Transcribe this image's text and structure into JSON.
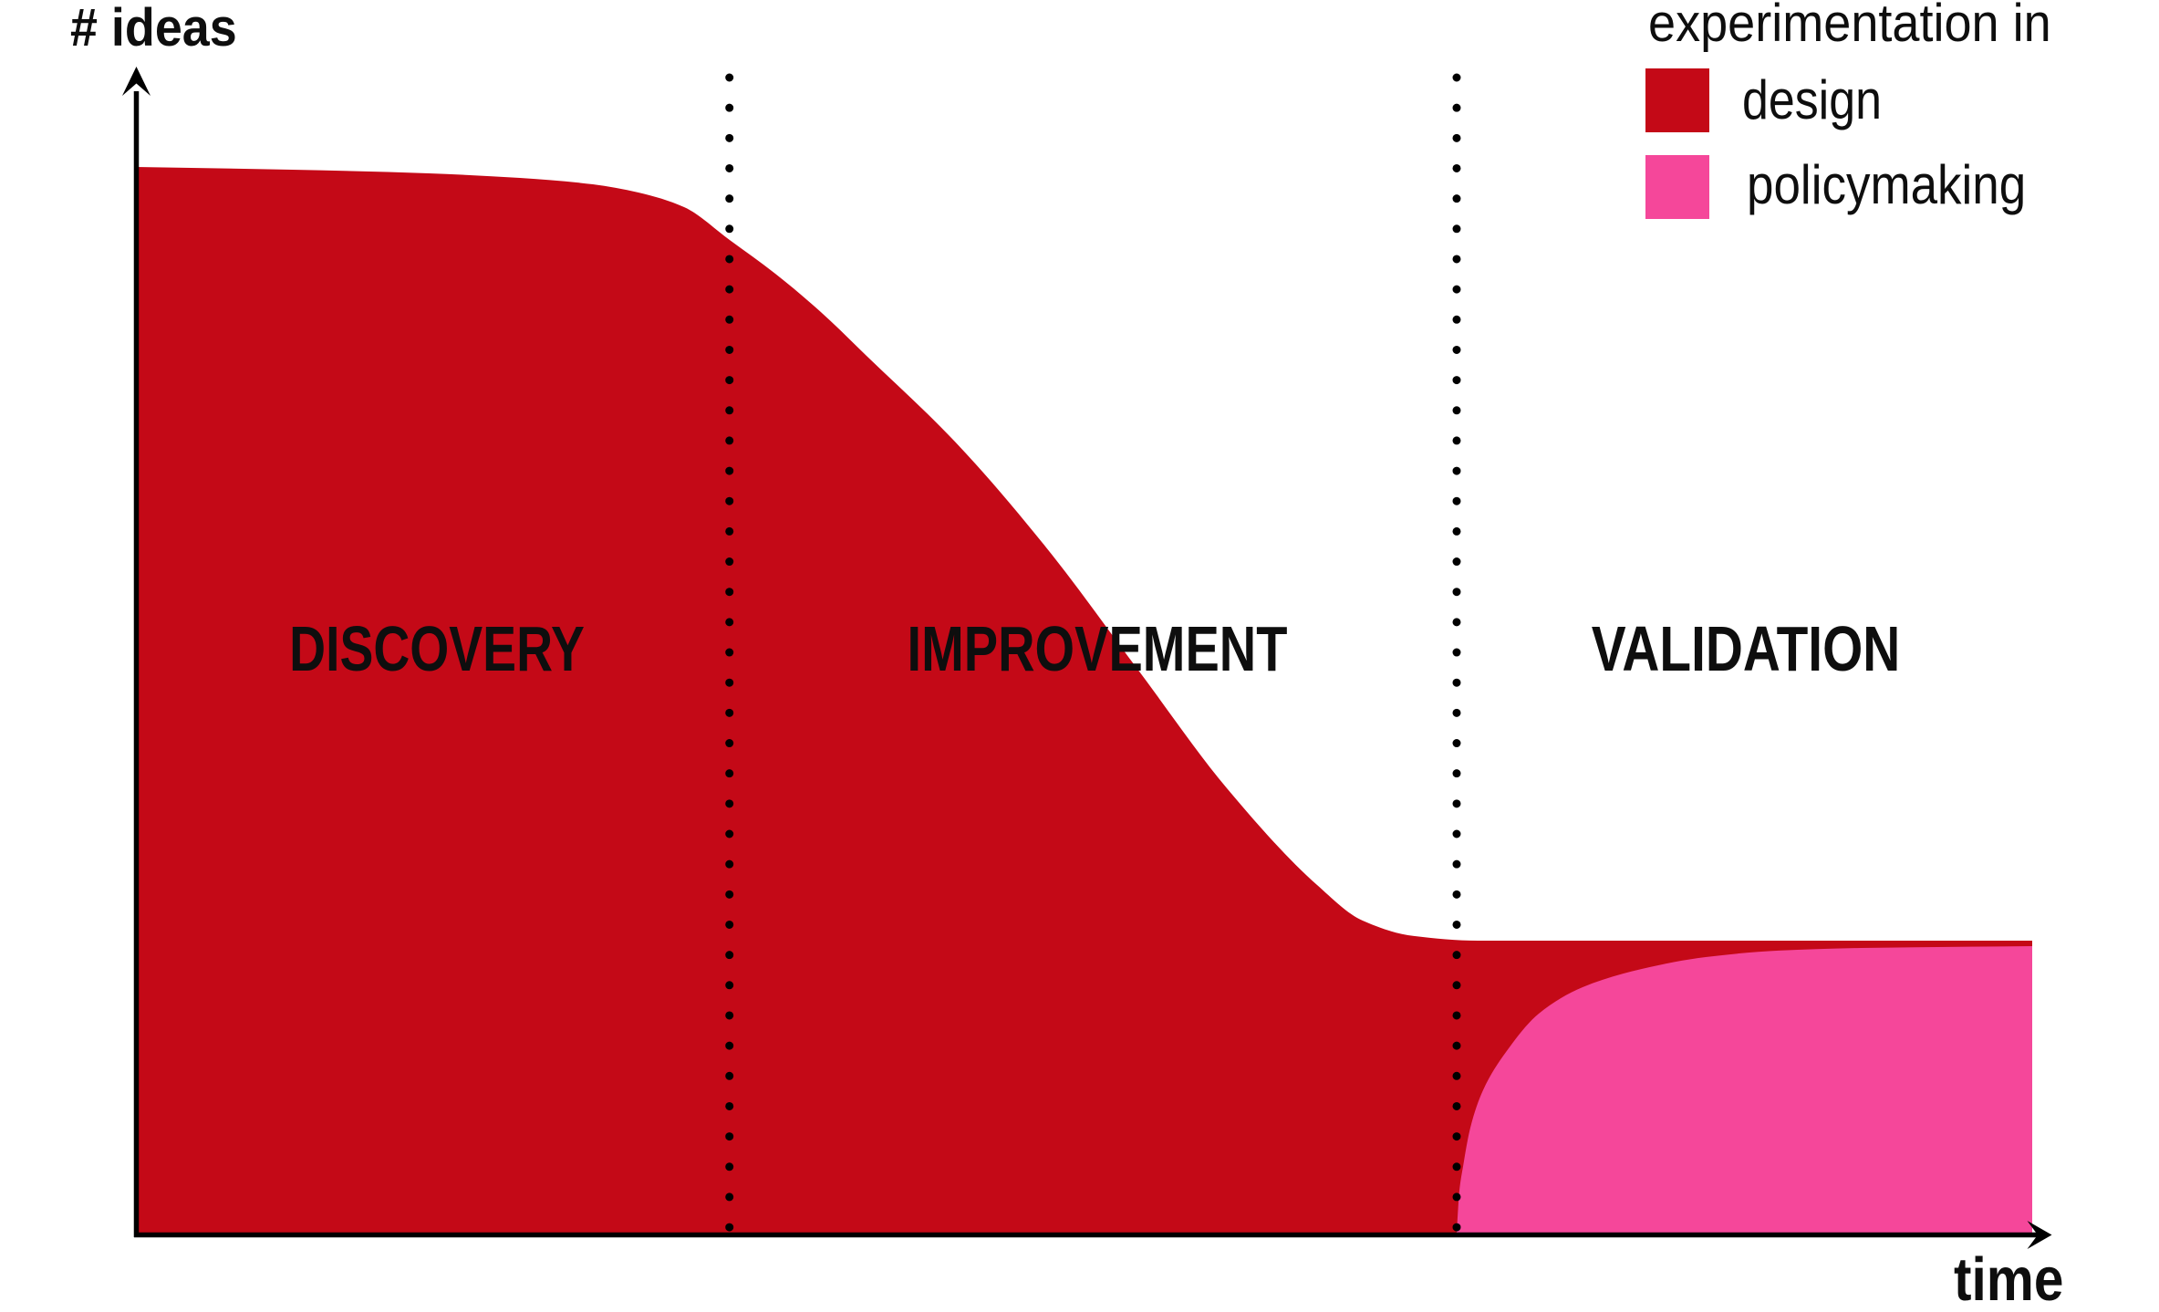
{
  "axes": {
    "y_label": "# ideas",
    "x_label": "time"
  },
  "phases": [
    {
      "label": "DISCOVERY"
    },
    {
      "label": "IMPROVEMENT"
    },
    {
      "label": "VALIDATION"
    }
  ],
  "legend": {
    "title": "experimentation in",
    "items": [
      {
        "label": "design",
        "color": "#C40917"
      },
      {
        "label": "policymaking",
        "color": "#F5479A"
      }
    ]
  },
  "colors": {
    "design": "#C40917",
    "policymaking": "#F5479A",
    "ink": "#000000"
  },
  "chart_data": {
    "type": "area",
    "title": "",
    "xlabel": "time",
    "ylabel": "# ideas",
    "x_range": [
      0,
      1
    ],
    "y_range": [
      0,
      1
    ],
    "grid": false,
    "axis_ticks": "none (qualitative sketch axes with arrowheads)",
    "legend_position": "top-right",
    "phases": [
      "DISCOVERY",
      "IMPROVEMENT",
      "VALIDATION"
    ],
    "phase_dividers_x": [
      0.313,
      0.6965
    ],
    "phase_divider_style": "vertical dotted line",
    "series": [
      {
        "name": "design",
        "color": "#C40917",
        "shape": "high plateau that falls in an S-curve to a low plateau",
        "points": [
          [
            0.0,
            1.0
          ],
          [
            0.0823,
            0.9974
          ],
          [
            0.1544,
            0.994
          ],
          [
            0.2025,
            0.9897
          ],
          [
            0.241,
            0.9837
          ],
          [
            0.265,
            0.976
          ],
          [
            0.2891,
            0.9623
          ],
          [
            0.3131,
            0.9315
          ],
          [
            0.3372,
            0.8998
          ],
          [
            0.3612,
            0.8639
          ],
          [
            0.3853,
            0.8228
          ],
          [
            0.4319,
            0.7423
          ],
          [
            0.48,
            0.643
          ],
          [
            0.5277,
            0.53
          ],
          [
            0.5753,
            0.417
          ],
          [
            0.6229,
            0.3262
          ],
          [
            0.6469,
            0.2928
          ],
          [
            0.6739,
            0.2783
          ],
          [
            0.7076,
            0.274
          ],
          [
            0.8422,
            0.274
          ],
          [
            1.0,
            0.274
          ]
        ]
      },
      {
        "name": "policymaking",
        "color": "#F5479A",
        "shape": "rises from zero at the last divider and saturates at a plateau just below the design plateau",
        "points": [
          [
            0.6965,
            0.0
          ],
          [
            0.6979,
            0.0385
          ],
          [
            0.6999,
            0.0625
          ],
          [
            0.7037,
            0.0985
          ],
          [
            0.7104,
            0.1336
          ],
          [
            0.7225,
            0.1695
          ],
          [
            0.7398,
            0.2055
          ],
          [
            0.7629,
            0.2303
          ],
          [
            0.7941,
            0.2474
          ],
          [
            0.8278,
            0.2586
          ],
          [
            0.8663,
            0.2646
          ],
          [
            0.9096,
            0.2671
          ],
          [
            1.0,
            0.2688
          ]
        ]
      }
    ]
  }
}
